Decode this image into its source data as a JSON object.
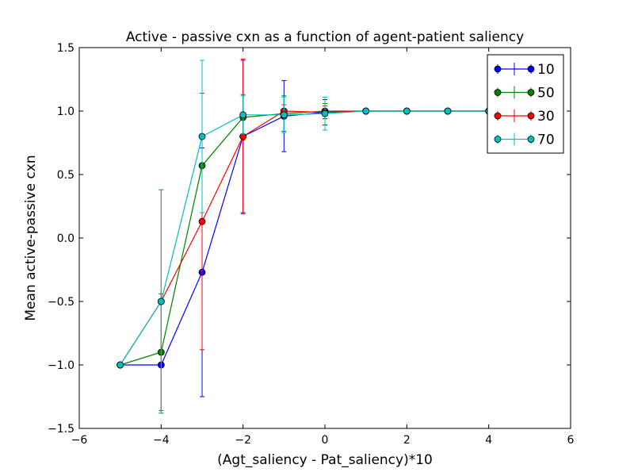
{
  "chart_data": {
    "type": "line",
    "title": "Active - passive cxn as a function of agent-patient saliency",
    "xlabel": "(Agt_saliency - Pat_saliency)*10",
    "ylabel": "Mean active-passive cxn",
    "xlim": [
      -6,
      6
    ],
    "ylim": [
      -1.5,
      1.5
    ],
    "xticks": [
      -6,
      -4,
      -2,
      0,
      2,
      4,
      6
    ],
    "xtick_labels": [
      "−6",
      "−4",
      "−2",
      "0",
      "2",
      "4",
      "6"
    ],
    "yticks": [
      -1.5,
      -1.0,
      -0.5,
      0.0,
      0.5,
      1.0,
      1.5
    ],
    "ytick_labels": [
      "−1.5",
      "−1.0",
      "−0.5",
      "0.0",
      "0.5",
      "1.0",
      "1.5"
    ],
    "grid": false,
    "legend_position": "top-right",
    "x": [
      -5,
      -4,
      -3,
      -2,
      -1,
      0,
      1,
      2,
      3,
      4
    ],
    "series": [
      {
        "name": "10",
        "color": "#0000ff",
        "values": [
          -1.0,
          -1.0,
          -0.27,
          0.8,
          0.96,
          0.99,
          1.0,
          1.0,
          1.0,
          1.0
        ],
        "errors": [
          0,
          0,
          0.98,
          0.6,
          0.28,
          0.1,
          0,
          0,
          0,
          0
        ]
      },
      {
        "name": "50",
        "color": "#008000",
        "values": [
          -1.0,
          -0.9,
          0.57,
          0.95,
          0.98,
          1.0,
          1.0,
          1.0,
          1.0,
          1.0
        ],
        "errors": [
          0,
          0.46,
          0.83,
          0.18,
          0.14,
          0.06,
          0,
          0,
          0,
          0
        ]
      },
      {
        "name": "30",
        "color": "#ff0000",
        "values": [
          -1.0,
          -0.5,
          0.13,
          0.8,
          1.0,
          0.99,
          1.0,
          1.0,
          1.0,
          1.0
        ],
        "errors": [
          0,
          0.88,
          1.01,
          0.61,
          0.05,
          0.05,
          0,
          0,
          0,
          0
        ]
      },
      {
        "name": "70",
        "color": "#00bfbf",
        "values": [
          -1.0,
          -0.5,
          0.8,
          0.97,
          0.97,
          0.98,
          1.0,
          1.0,
          1.0,
          1.0
        ],
        "errors": [
          0,
          0.88,
          0.6,
          0.15,
          0.14,
          0.13,
          0,
          0,
          0,
          0
        ]
      }
    ]
  }
}
